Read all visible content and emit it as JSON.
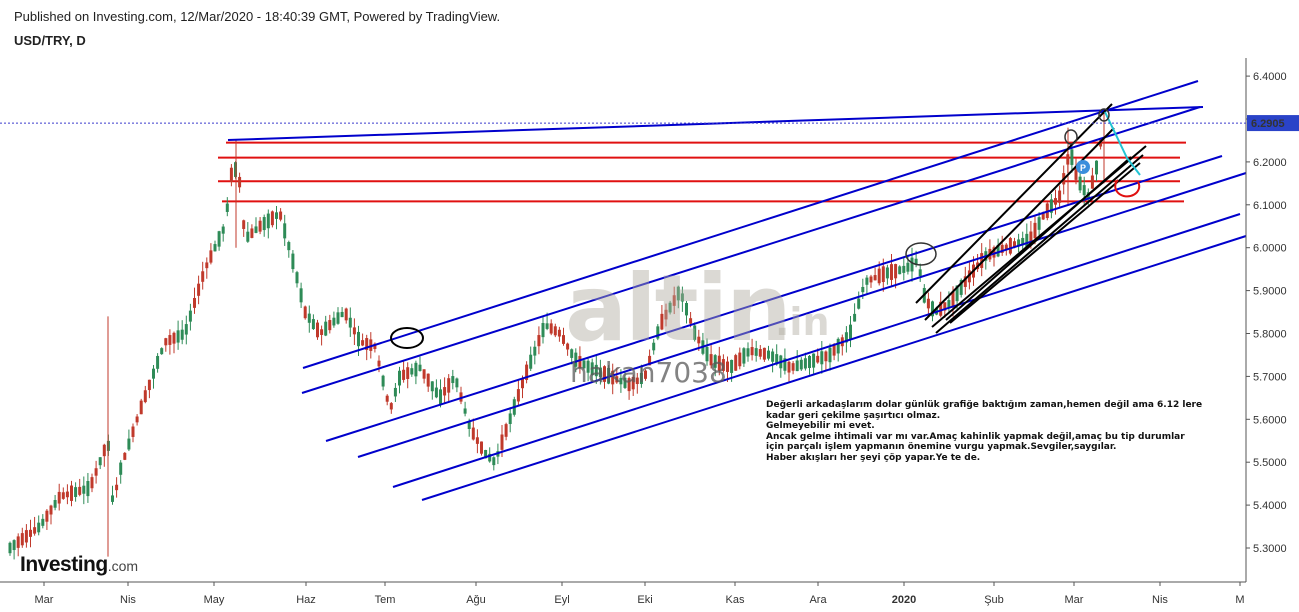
{
  "header": {
    "published": "Published on Investing.com, 12/Mar/2020 - 18:40:39 GMT, Powered by TradingView.",
    "symbol": "USD/TRY, D"
  },
  "chart_data": {
    "type": "candlestick",
    "title": "USD/TRY, D",
    "x_tick_labels": [
      "Mar",
      "Nis",
      "May",
      "Haz",
      "Tem",
      "Ağu",
      "Eyl",
      "Eki",
      "Kas",
      "Ara",
      "2020",
      "Şub",
      "Mar",
      "Nis",
      "M"
    ],
    "y_tick_labels": [
      "6.4000",
      "6.3000",
      "6.2000",
      "6.1000",
      "6.0000",
      "5.9000",
      "5.8000",
      "5.7000",
      "5.6000",
      "5.5000",
      "5.4000",
      "5.3000"
    ],
    "y_range": [
      5.2,
      6.45
    ],
    "last_price": "6.2905",
    "last_price_value": 6.2905,
    "colors": {
      "up": "#2e8b57",
      "down": "#c0392b",
      "channel": "#0000cc",
      "horizontal": "#e01010",
      "short_channel": "#000000",
      "projection": "#22c4d4",
      "last_price_line": "#3b3bcc"
    },
    "horizontal_levels": [
      6.245,
      6.21,
      6.155,
      6.108
    ],
    "series_summary": [
      {
        "month": "Mar",
        "approx_range": [
          5.28,
          5.45
        ]
      },
      {
        "month": "Nis",
        "approx_range": [
          5.3,
          5.85
        ]
      },
      {
        "month": "May",
        "approx_range": [
          5.8,
          6.25
        ]
      },
      {
        "month": "Haz",
        "approx_range": [
          5.75,
          6.15
        ]
      },
      {
        "month": "Tem",
        "approx_range": [
          5.58,
          5.8
        ]
      },
      {
        "month": "Ağu",
        "approx_range": [
          5.45,
          5.75
        ]
      },
      {
        "month": "Eyl",
        "approx_range": [
          5.65,
          5.85
        ]
      },
      {
        "month": "Eki",
        "approx_range": [
          5.62,
          5.95
        ]
      },
      {
        "month": "Kas",
        "approx_range": [
          5.68,
          5.8
        ]
      },
      {
        "month": "Ara",
        "approx_range": [
          5.72,
          5.95
        ]
      },
      {
        "month": "2020",
        "approx_range": [
          5.85,
          5.99
        ]
      },
      {
        "month": "Şub",
        "approx_range": [
          5.9,
          6.08
        ]
      },
      {
        "month": "Mar",
        "approx_range": [
          6.05,
          6.3
        ]
      }
    ]
  },
  "annotation": {
    "lines": [
      "Değerli arkadaşlarım dolar günlük grafiğe baktığım zaman,hemen değil ama 6.12 lere",
      "kadar geri çekilme şaşırtıcı olmaz.",
      "Gelmeyebilir mi evet.",
      "Ancak gelme ihtimali var mı var.Amaç kahinlik yapmak değil,amaç bu tip durumlar",
      "için parçalı işlem yapmanın önemine vurgu yapmak.Sevgiler,saygılar.",
      "Haber akışları her şeyi çöp yapar.Ye te de."
    ]
  },
  "watermarks": {
    "site": "altin",
    "site_suffix": ".in",
    "user": "hakan7038"
  },
  "logo": {
    "main": "Investing",
    "suffix": ".com"
  }
}
